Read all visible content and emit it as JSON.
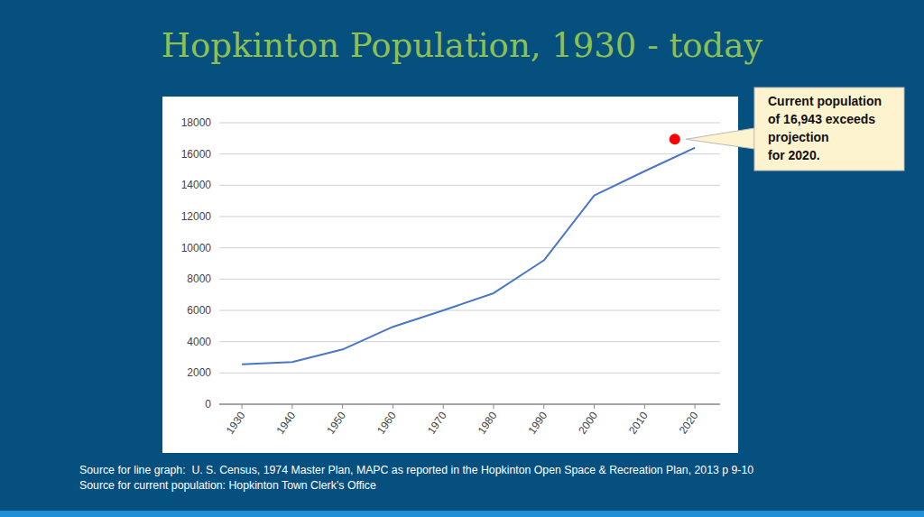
{
  "chart_data": {
    "type": "line",
    "title": "Hopkinton Population, 1930 - today",
    "x": [
      1930,
      1940,
      1950,
      1960,
      1970,
      1980,
      1990,
      2000,
      2010,
      2020
    ],
    "values": [
      2550,
      2700,
      3500,
      4950,
      6000,
      7100,
      9200,
      13350,
      14900,
      16400
    ],
    "color": "#4a76c9",
    "xlim": [
      1925.5,
      2025
    ],
    "xticks": [
      1930,
      1940,
      1950,
      1960,
      1970,
      1980,
      1990,
      2000,
      2010,
      2020
    ],
    "ylim": [
      0,
      18000
    ],
    "yticks": [
      0,
      2000,
      4000,
      6000,
      8000,
      10000,
      12000,
      14000,
      16000,
      18000
    ],
    "grid": true,
    "annotations": [
      {
        "text": [
          "Current population",
          "of 16,943 exceeds",
          "projection",
          "for 2020."
        ],
        "x": 2016,
        "y": 16943
      }
    ]
  },
  "footer": [
    "Source for line graph:  U. S. Census, 1974 Master Plan, MAPC as reported in the Hopkinton Open Space & Recreation Plan, 2013 p 9-10",
    "Source for current population: Hopkinton Town Clerk’s Office"
  ]
}
